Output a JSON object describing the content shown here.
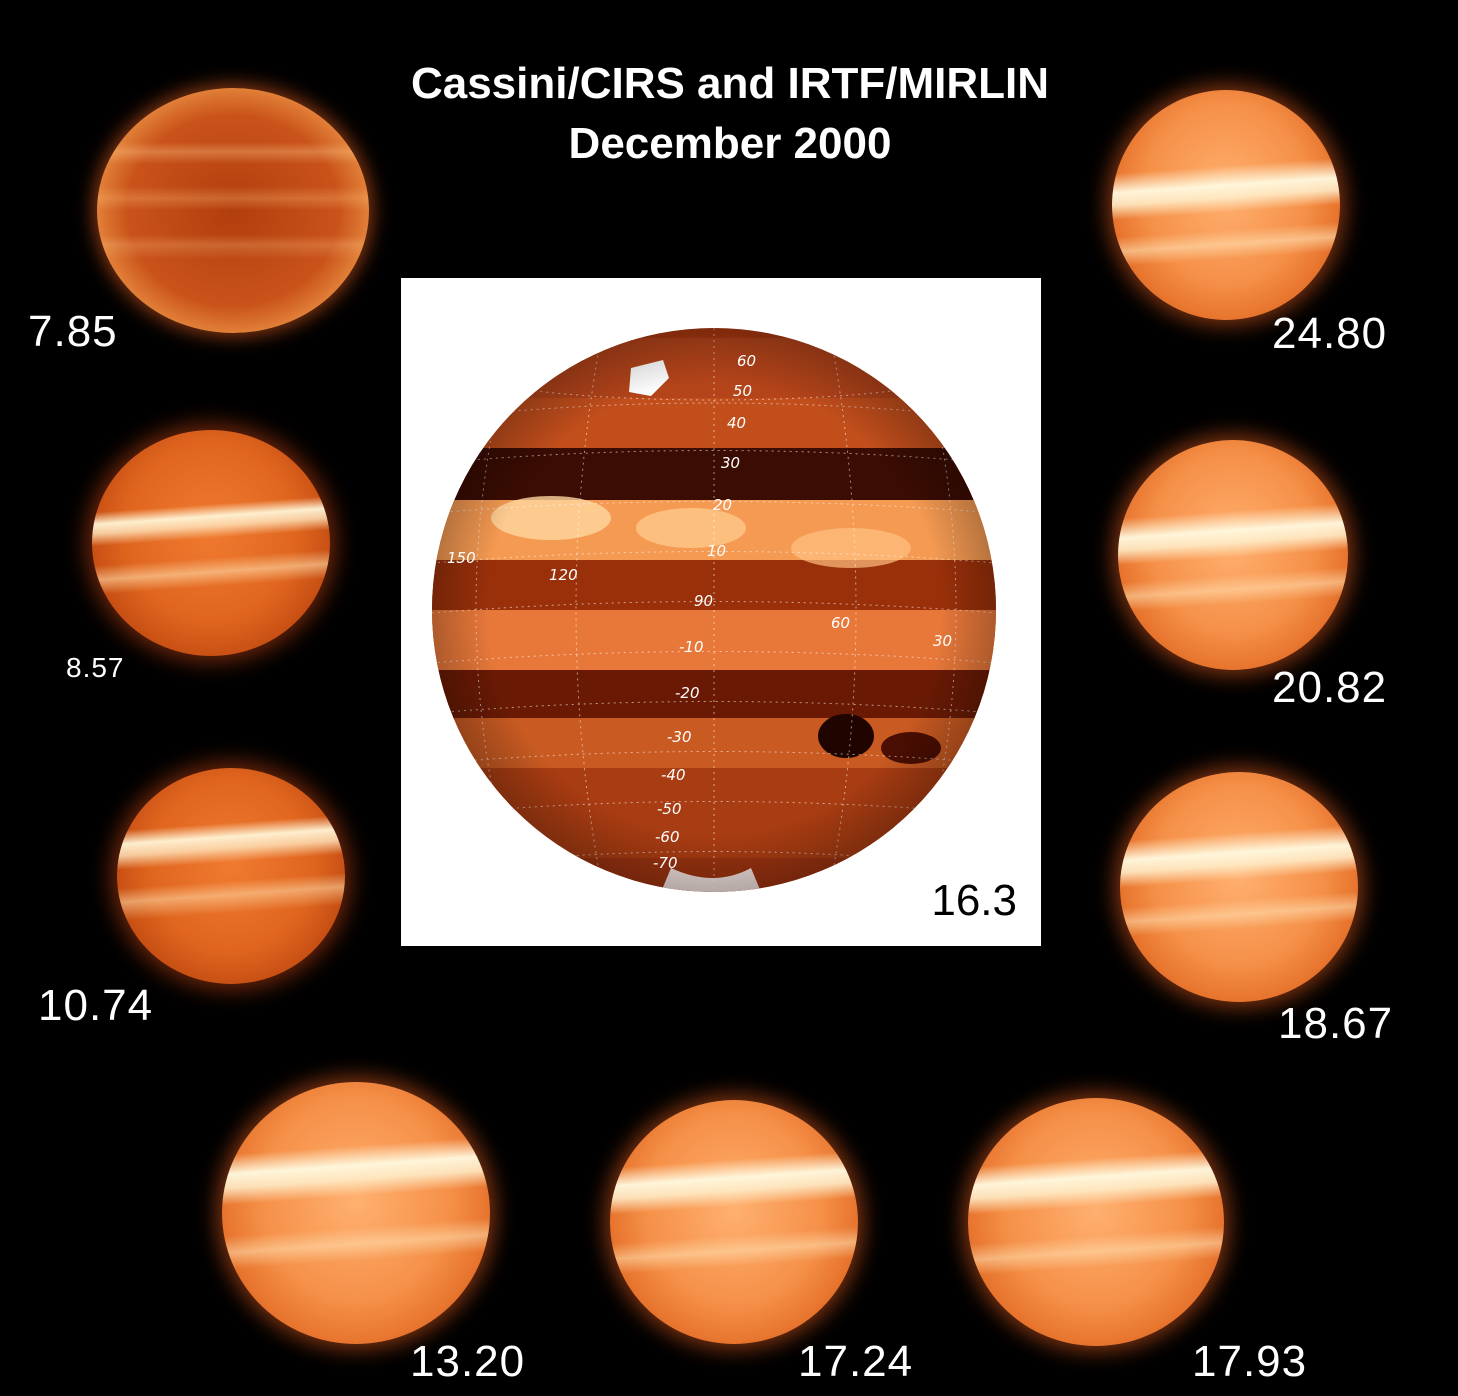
{
  "title": {
    "line1": "Cassini/CIRS and IRTF/MIRLIN",
    "line2": "December 2000"
  },
  "panels": {
    "p785": "7.85",
    "p857": "8.57",
    "p1074": "10.74",
    "p2480": "24.80",
    "p2082": "20.82",
    "p1867": "18.67",
    "p1320": "13.20",
    "p1724": "17.24",
    "p1793": "17.93"
  },
  "center": {
    "label": "16.3",
    "latitudes": [
      "60",
      "50",
      "40",
      "30",
      "20",
      "10",
      "-10",
      "-20",
      "-30",
      "-40",
      "-50",
      "-60",
      "-70"
    ],
    "longitudes": [
      "150",
      "120",
      "90",
      "60",
      "30"
    ]
  },
  "colors": {
    "background": "#000000",
    "bright": "#fff4d8",
    "orange": "#f08a3c",
    "deep": "#8a2a08",
    "dark": "#3a0a00"
  }
}
